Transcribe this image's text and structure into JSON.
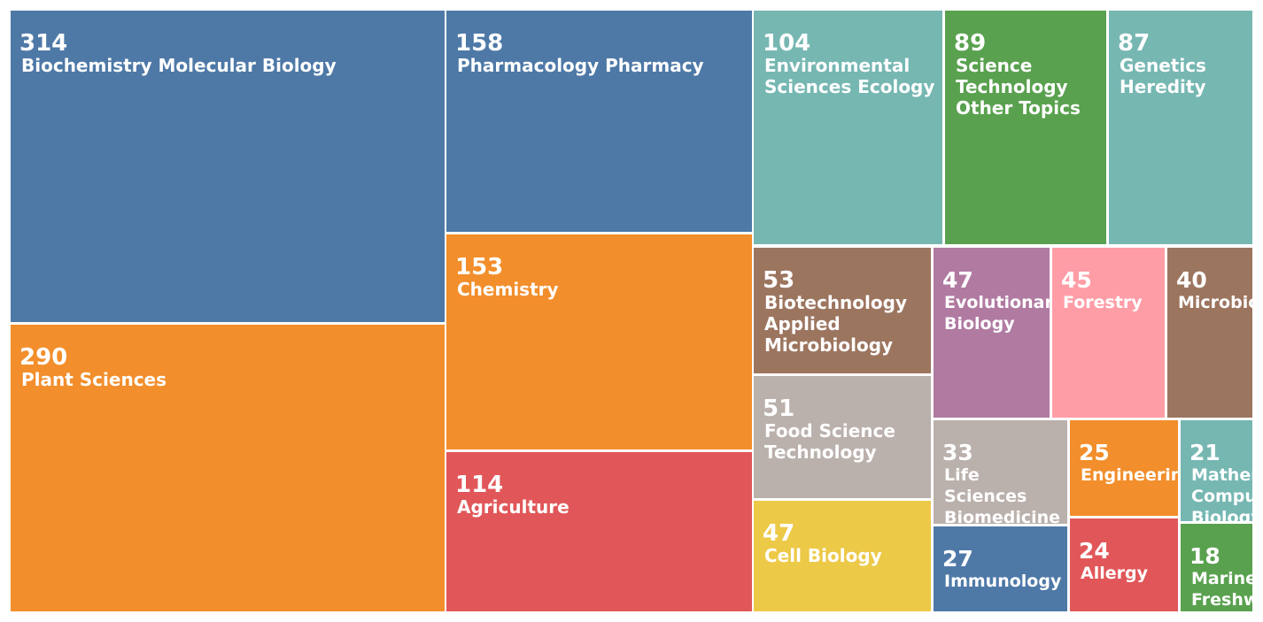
{
  "chart_data": {
    "type": "treemap",
    "items": [
      {
        "label": "Biochemistry Molecular Biology",
        "value": 314,
        "color": "#4e79a7"
      },
      {
        "label": "Plant Sciences",
        "value": 290,
        "color": "#f28e2b"
      },
      {
        "label": "Pharmacology Pharmacy",
        "value": 158,
        "color": "#4e79a7"
      },
      {
        "label": "Chemistry",
        "value": 153,
        "color": "#f28e2b"
      },
      {
        "label": "Agriculture",
        "value": 114,
        "color": "#e15759"
      },
      {
        "label": "Environmental Sciences Ecology",
        "value": 104,
        "color": "#76b7b2"
      },
      {
        "label": "Science Technology Other Topics",
        "value": 89,
        "color": "#59a14f"
      },
      {
        "label": "Genetics Heredity",
        "value": 87,
        "color": "#76b7b2"
      },
      {
        "label": "Biotechnology Applied Microbiology",
        "value": 53,
        "color": "#9c755f"
      },
      {
        "label": "Food Science Technology",
        "value": 51,
        "color": "#bab0ac"
      },
      {
        "label": "Cell Biology",
        "value": 47,
        "color": "#edc948"
      },
      {
        "label": "Evolutionary Biology",
        "value": 47,
        "color": "#b07aa1"
      },
      {
        "label": "Forestry",
        "value": 45,
        "color": "#ff9da7"
      },
      {
        "label": "Microbiology",
        "value": 40,
        "color": "#9c755f"
      },
      {
        "label": "Life Sciences Biomedicine Other Topics",
        "value": 33,
        "color": "#bab0ac"
      },
      {
        "label": "Immunology",
        "value": 27,
        "color": "#4e79a7"
      },
      {
        "label": "Engineering",
        "value": 25,
        "color": "#f28e2b"
      },
      {
        "label": "Allergy",
        "value": 24,
        "color": "#e15759"
      },
      {
        "label": "Mathematical Computational Biology",
        "value": 21,
        "color": "#76b7b2"
      },
      {
        "label": "Marine Freshwater Biology",
        "value": 18,
        "color": "#59a14f"
      }
    ]
  }
}
